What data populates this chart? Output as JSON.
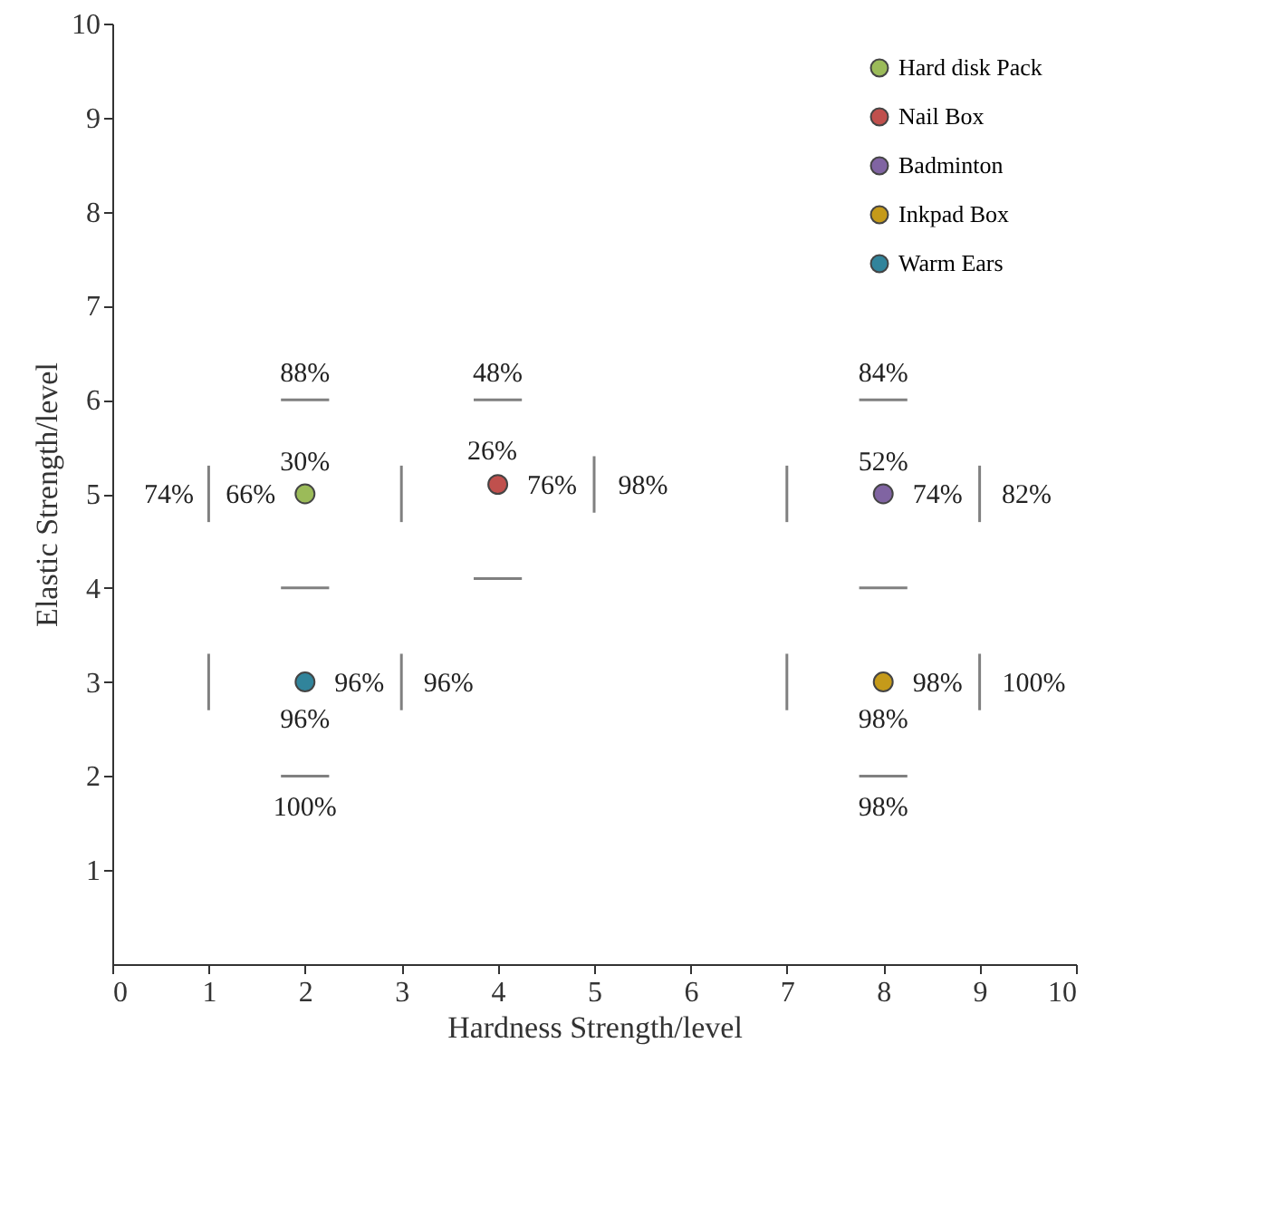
{
  "chart_data": {
    "type": "scatter",
    "xlabel": "Hardness Strength/level",
    "ylabel": "Elastic Strength/level",
    "xlim": [
      0,
      10
    ],
    "ylim": [
      0,
      10
    ],
    "xticks": [
      0,
      1,
      2,
      3,
      4,
      5,
      6,
      7,
      8,
      9,
      10
    ],
    "yticks": [
      1,
      2,
      3,
      4,
      5,
      6,
      7,
      8,
      9,
      10
    ],
    "grid": false,
    "legend": "top right",
    "marker": "circle",
    "series": [
      {
        "name": "Hard disk Pack",
        "color": "#9bbb59",
        "x": [
          2
        ],
        "values": [
          5
        ]
      },
      {
        "name": "Nail Box",
        "color": "#c0504d",
        "x": [
          4
        ],
        "values": [
          5.1
        ]
      },
      {
        "name": "Badminton",
        "color": "#8064a2",
        "x": [
          8
        ],
        "values": [
          5
        ]
      },
      {
        "name": "Inkpad Box",
        "color": "#c59a1a",
        "x": [
          8
        ],
        "values": [
          3
        ]
      },
      {
        "name": "Warm Ears",
        "color": "#31849b",
        "x": [
          2
        ],
        "values": [
          3
        ]
      },
      {
        "type": "line",
        "marker": "none",
        "color": "#808080",
        "x": [
          1.75,
          2.25
        ],
        "values": [
          6,
          6
        ]
      },
      {
        "type": "line",
        "marker": "none",
        "color": "#808080",
        "x": [
          1.75,
          2.25
        ],
        "values": [
          4,
          4
        ]
      },
      {
        "type": "line",
        "marker": "none",
        "color": "#808080",
        "x": [
          1.75,
          2.25
        ],
        "values": [
          2,
          2
        ]
      },
      {
        "type": "line",
        "marker": "none",
        "color": "#808080",
        "x": [
          3.75,
          4.25
        ],
        "values": [
          6,
          6
        ]
      },
      {
        "type": "line",
        "marker": "none",
        "color": "#808080",
        "x": [
          3.75,
          4.25
        ],
        "values": [
          4.1,
          4.1
        ]
      },
      {
        "type": "line",
        "marker": "none",
        "color": "#808080",
        "x": [
          7.75,
          8.25
        ],
        "values": [
          6,
          6
        ]
      },
      {
        "type": "line",
        "marker": "none",
        "color": "#808080",
        "x": [
          7.75,
          8.25
        ],
        "values": [
          4,
          4
        ]
      },
      {
        "type": "line",
        "marker": "none",
        "color": "#808080",
        "x": [
          7.75,
          8.25
        ],
        "values": [
          2,
          2
        ]
      },
      {
        "type": "line",
        "marker": "none",
        "color": "#808080",
        "x": [
          1,
          1
        ],
        "values": [
          4.7,
          5.3
        ]
      },
      {
        "type": "line",
        "marker": "none",
        "color": "#808080",
        "x": [
          3,
          3
        ],
        "values": [
          4.7,
          5.3
        ]
      },
      {
        "type": "line",
        "marker": "none",
        "color": "#808080",
        "x": [
          5,
          5
        ],
        "values": [
          4.8,
          5.4
        ]
      },
      {
        "type": "line",
        "marker": "none",
        "color": "#808080",
        "x": [
          7,
          7
        ],
        "values": [
          4.7,
          5.3
        ]
      },
      {
        "type": "line",
        "marker": "none",
        "color": "#808080",
        "x": [
          9,
          9
        ],
        "values": [
          4.7,
          5.3
        ]
      },
      {
        "type": "line",
        "marker": "none",
        "color": "#808080",
        "x": [
          1,
          1
        ],
        "values": [
          2.7,
          3.3
        ]
      },
      {
        "type": "line",
        "marker": "none",
        "color": "#808080",
        "x": [
          3,
          3
        ],
        "values": [
          2.7,
          3.3
        ]
      },
      {
        "type": "line",
        "marker": "none",
        "color": "#808080",
        "x": [
          7,
          7
        ],
        "values": [
          2.7,
          3.3
        ]
      },
      {
        "type": "line",
        "marker": "none",
        "color": "#808080",
        "x": [
          9,
          9
        ],
        "values": [
          2.7,
          3.3
        ]
      }
    ],
    "annotations": [
      {
        "text": "74%",
        "x": 1,
        "y": 5
      },
      {
        "text": "66%",
        "x": 2,
        "y": 5
      },
      {
        "text": "30%",
        "x": 2,
        "y": 5
      },
      {
        "text": "88%",
        "x": 2,
        "y": 6
      },
      {
        "text": "96%",
        "x": 2,
        "y": 3
      },
      {
        "text": "96%",
        "x": 3,
        "y": 3
      },
      {
        "text": "96%",
        "x": 2,
        "y": 3
      },
      {
        "text": "100%",
        "x": 2,
        "y": 2
      },
      {
        "text": "26%",
        "x": 4,
        "y": 5.1
      },
      {
        "text": "76%",
        "x": 4,
        "y": 5.1
      },
      {
        "text": "98%",
        "x": 5,
        "y": 5.1
      },
      {
        "text": "48%",
        "x": 4,
        "y": 6
      },
      {
        "text": "52%",
        "x": 8,
        "y": 5
      },
      {
        "text": "74%",
        "x": 8,
        "y": 5
      },
      {
        "text": "82%",
        "x": 9,
        "y": 5
      },
      {
        "text": "84%",
        "x": 8,
        "y": 6
      },
      {
        "text": "98%",
        "x": 8,
        "y": 3
      },
      {
        "text": "100%",
        "x": 9,
        "y": 3
      },
      {
        "text": "98%",
        "x": 8,
        "y": 3
      },
      {
        "text": "98%",
        "x": 8,
        "y": 2
      }
    ]
  }
}
